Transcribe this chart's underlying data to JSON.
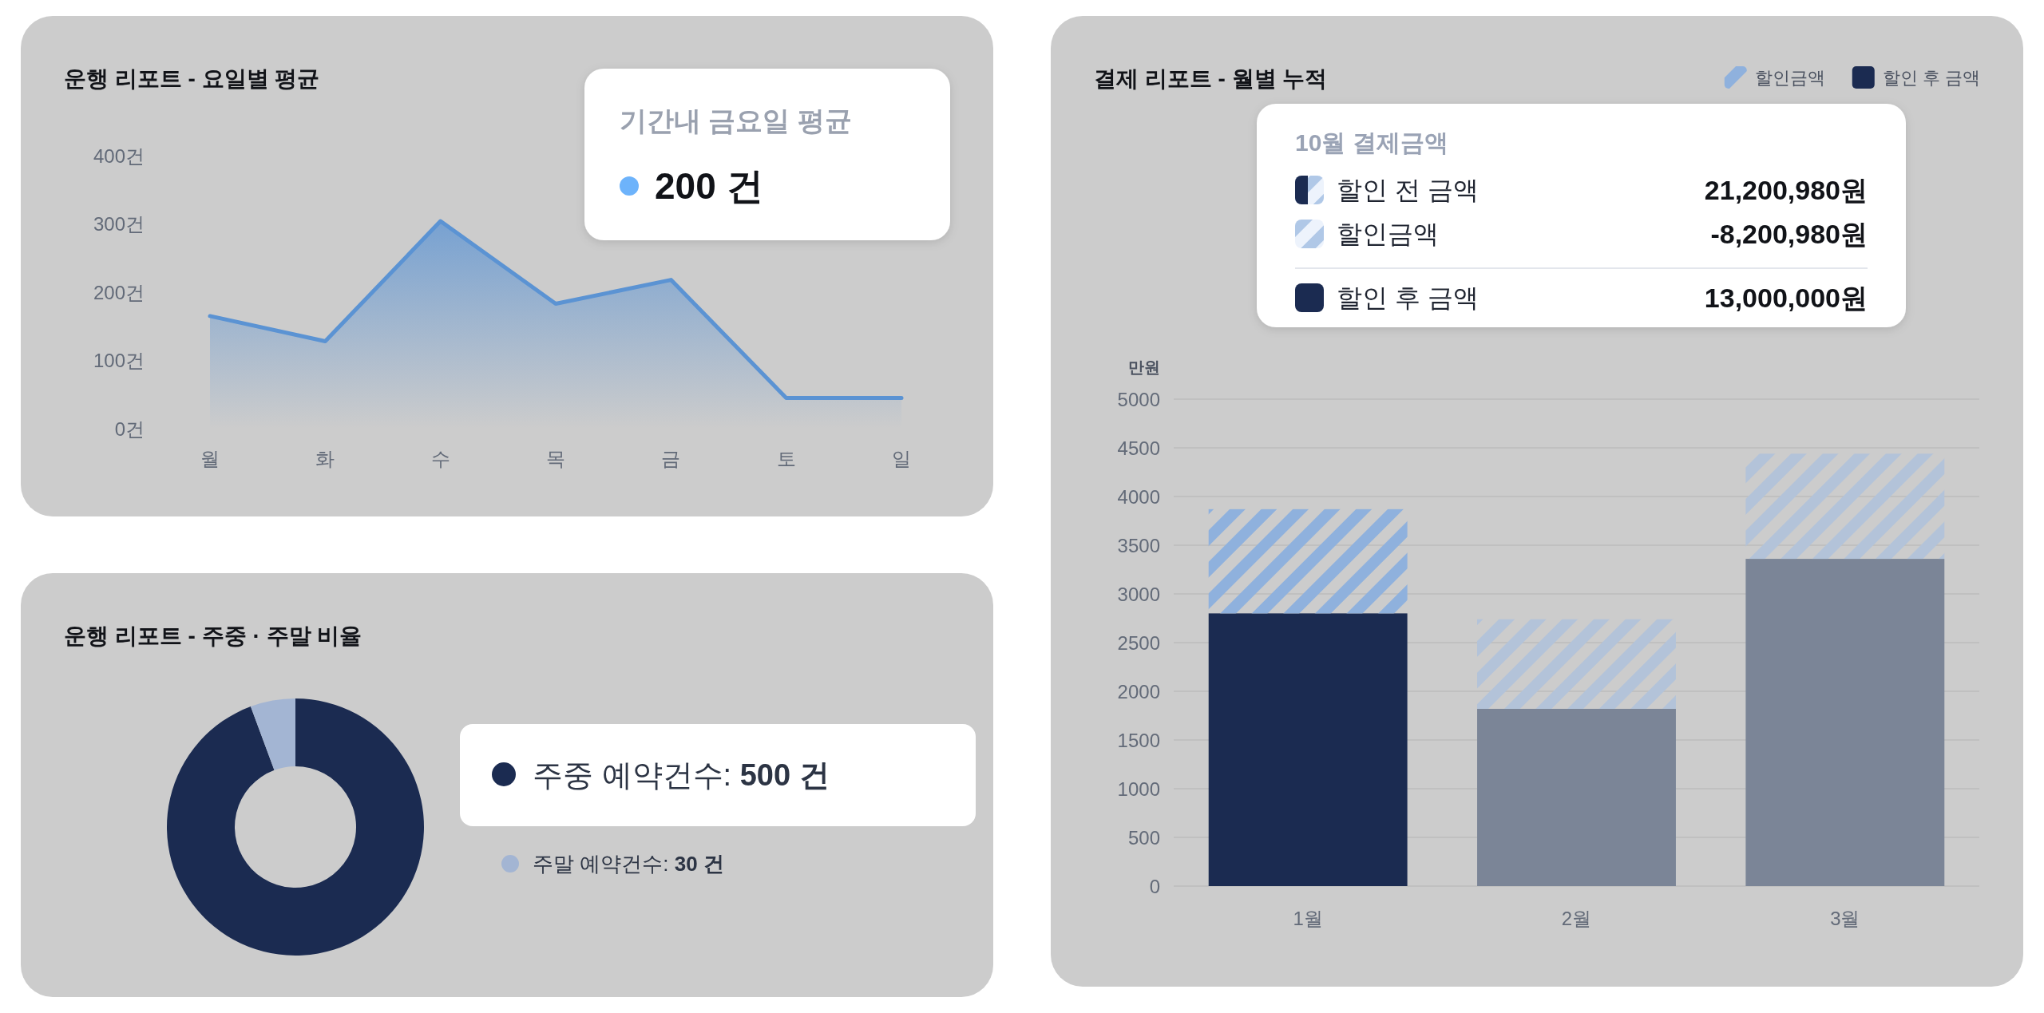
{
  "chart_data": [
    {
      "type": "area",
      "title": "운행 리포트 - 요일별 평균",
      "categories": [
        "월",
        "화",
        "수",
        "목",
        "금",
        "토",
        "일"
      ],
      "series": [
        {
          "color": "#5b93d3",
          "values": [
            165,
            128,
            304,
            183,
            218,
            45,
            45
          ]
        }
      ],
      "ylim": [
        0,
        400
      ],
      "yticks": [
        {
          "value": 0,
          "label": "0건"
        },
        {
          "value": 100,
          "label": "100건"
        },
        {
          "value": 200,
          "label": "200건"
        },
        {
          "value": 300,
          "label": "300건"
        },
        {
          "value": 400,
          "label": "400건"
        }
      ],
      "annotations": [
        "기간내 금요일 평균",
        "200 건"
      ]
    },
    {
      "type": "donut",
      "title": "운행 리포트 - 주중 · 주말 비율",
      "categories": [
        "주중 예약건수: 500 건",
        "주말 예약건수: 30 건"
      ],
      "values": [
        500,
        30
      ],
      "colors": [
        "#1b2b51",
        "#a3b5d3"
      ],
      "legend": "right"
    },
    {
      "type": "bar",
      "stacked": true,
      "title": "결제 리포트 - 월별 누적",
      "ylabel": "만원",
      "categories": [
        "1월",
        "2월",
        "3월"
      ],
      "series": [
        {
          "name": "할인 후 금액",
          "color": "#1b2b51",
          "colors": [
            "#1b2b51",
            "#7b8597",
            "#7b8597"
          ],
          "values": [
            2800,
            1820,
            3360
          ]
        },
        {
          "name": "할인금액",
          "color": "#8fb1dd",
          "colors": [
            "#8fb1dd",
            "#b3c3d9",
            "#b3c3d9"
          ],
          "values": [
            1070,
            920,
            1080
          ]
        }
      ],
      "ylim": [
        0,
        5000
      ],
      "yticks": [
        0,
        500,
        1000,
        1500,
        2000,
        2500,
        3000,
        3500,
        4000,
        4500,
        5000
      ],
      "grid": "y",
      "legend": "top right",
      "annotations": [
        "10월 결제금액",
        "할인 전 금액",
        "21,200,980원",
        "할인금액",
        "-8,200,980원",
        "할인 후 금액",
        "13,000,000원"
      ]
    }
  ]
}
